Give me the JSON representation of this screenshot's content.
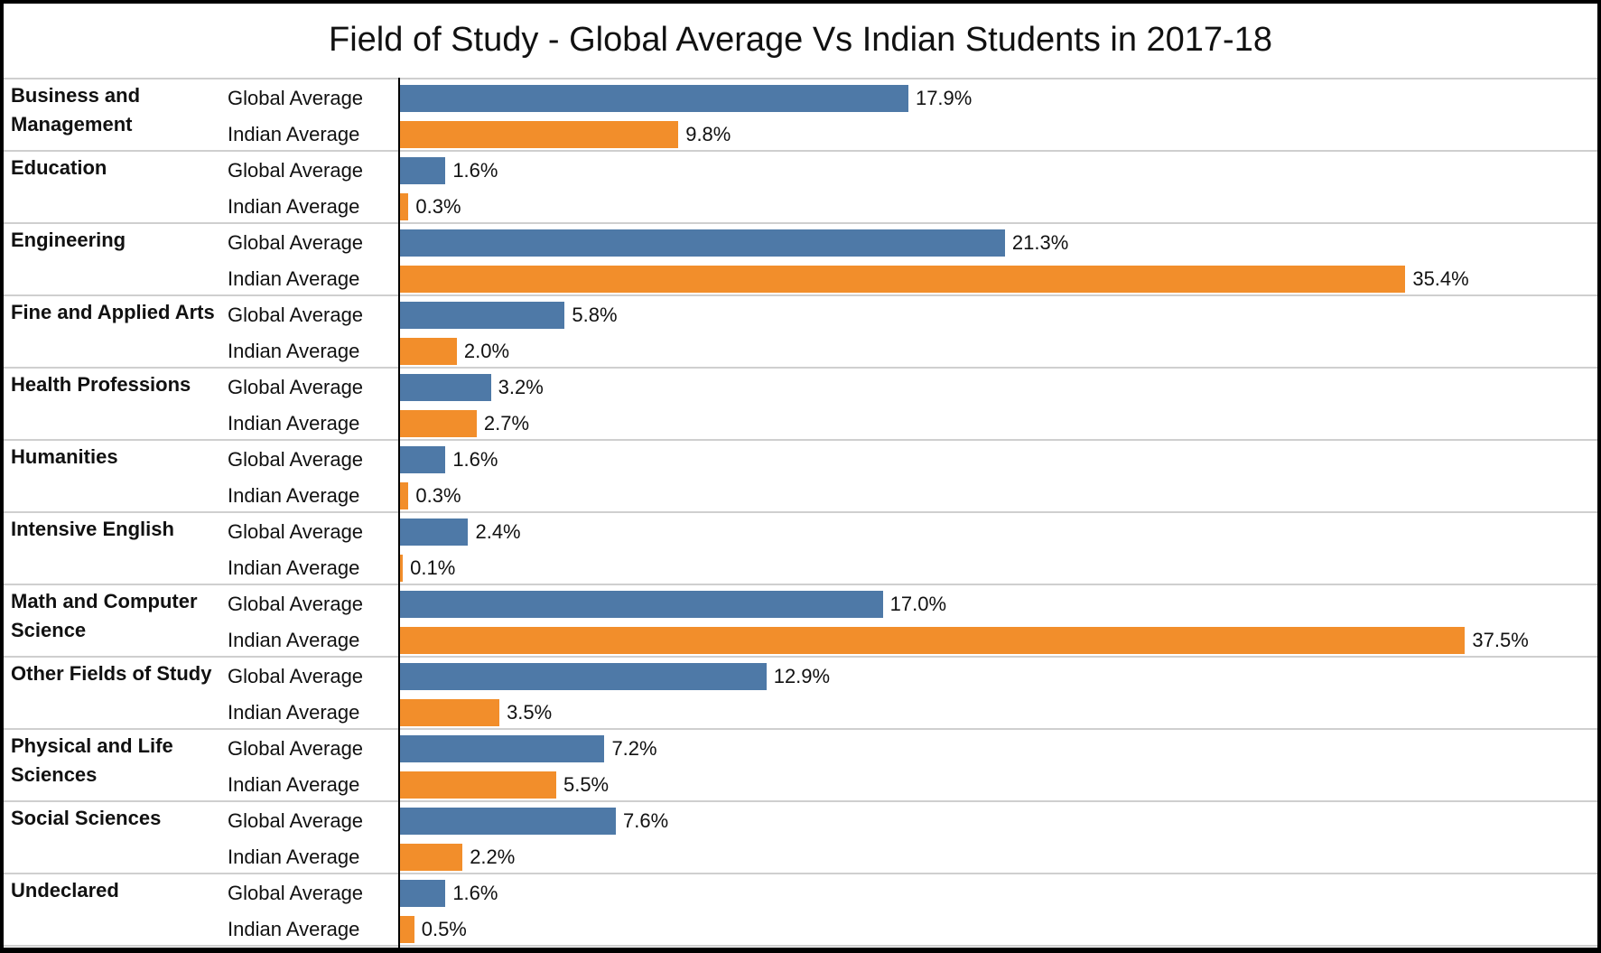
{
  "chart_data": {
    "type": "bar",
    "orientation": "horizontal",
    "title": "Field of Study - Global Average Vs Indian Students in 2017-18",
    "categories": [
      "Business and Management",
      "Education",
      "Engineering",
      "Fine and Applied Arts",
      "Health Professions",
      "Humanities",
      "Intensive English",
      "Math and Computer Science",
      "Other Fields of Study",
      "Physical and Life Sciences",
      "Social Sciences",
      "Undeclared"
    ],
    "series": [
      {
        "name": "Global Average",
        "color": "#4e79a7",
        "values": [
          17.9,
          1.6,
          21.3,
          5.8,
          3.2,
          1.6,
          2.4,
          17.0,
          12.9,
          7.2,
          7.6,
          1.6
        ]
      },
      {
        "name": "Indian Average",
        "color": "#f28e2b",
        "values": [
          9.8,
          0.3,
          35.4,
          2.0,
          2.7,
          0.3,
          0.1,
          37.5,
          3.5,
          5.5,
          2.2,
          0.5
        ]
      }
    ],
    "value_format": "%",
    "xlim": [
      0,
      42
    ],
    "grid": false,
    "row_separators": true
  }
}
